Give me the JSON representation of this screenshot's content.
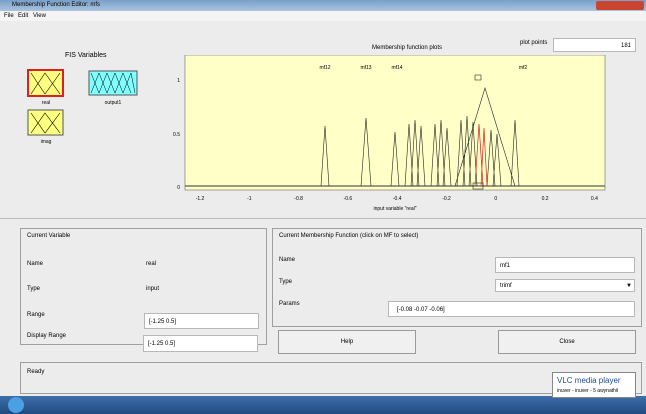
{
  "window": {
    "title": "Membership Function Editor: mfs"
  },
  "menu": [
    "File",
    "Edit",
    "View"
  ],
  "fis": {
    "title": "FIS Variables",
    "variables": [
      "real",
      "output1",
      "imag"
    ]
  },
  "plot": {
    "title": "Membership function plots",
    "points_label": "plot points",
    "points": "181",
    "xticks": [
      "-1.2",
      "-1",
      "-0.8",
      "-0.6",
      "-0.4",
      "-0.2",
      "0",
      "0.2",
      "0.4"
    ],
    "yticks": [
      "0",
      "0.5",
      "1"
    ],
    "xlabel": "input variable \"real\"",
    "mf_labels": [
      "mf12",
      "mf13",
      "mf14",
      "mf2"
    ]
  },
  "current_variable": {
    "title": "Current Variable",
    "name_label": "Name",
    "name": "real",
    "type_label": "Type",
    "type": "input",
    "range_label": "Range",
    "range": "[-1.25 0.5]",
    "display_range_label": "Display Range",
    "display_range": "[-1.25 0.5]"
  },
  "current_mf": {
    "title": "Current Membership Function (click on MF to select)",
    "name_label": "Name",
    "name": "mf1",
    "type_label": "Type",
    "type": "trimf",
    "params_label": "Params",
    "params": "[-0.08 -0.07 -0.06]"
  },
  "buttons": {
    "help": "Help",
    "close": "Close"
  },
  "status": "Ready",
  "notification": {
    "title": "VLC media player",
    "text": "inuver - inuver - 5 awynathil"
  }
}
